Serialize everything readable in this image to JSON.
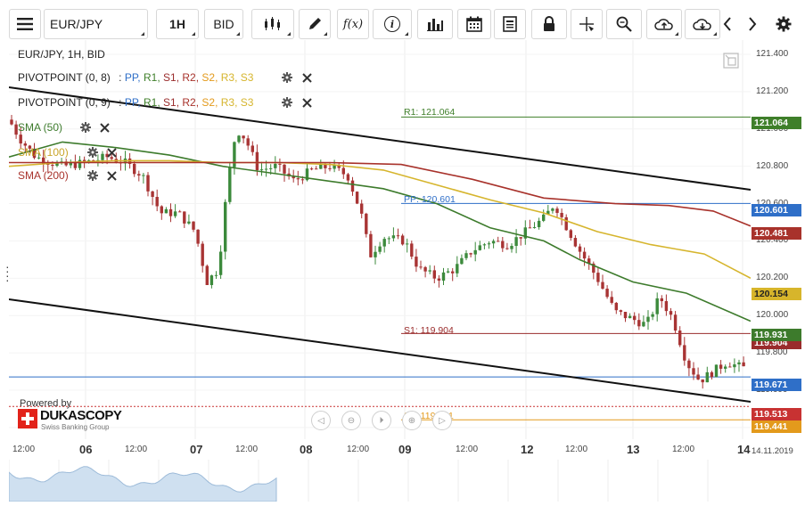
{
  "toolbar": {
    "menu_icon": "hamburger-icon",
    "instrument": "EUR/JPY",
    "period": "1H",
    "side": "BID",
    "fx_label": "f(x)",
    "info_label": "i"
  },
  "legend": {
    "title": "EUR/JPY, 1H, BID",
    "pivot1_name": "PIVOTPOINT (0, 8)",
    "pivot2_name": "PIVOTPOINT (0, 9)",
    "pivot_sep": ":",
    "pp": "PP,",
    "r1": "R1,",
    "s1": "S1,",
    "r2": "R2,",
    "s2": "S2,",
    "r3": "R3,",
    "s3": "S3",
    "sma50": "SMA (50)",
    "sma100": "SMA (100)",
    "sma200": "SMA (200)"
  },
  "levels": {
    "r1_label": "R1: 121.064",
    "pp_label": "PP: 120.601",
    "s1_label": "S1: 119.904",
    "s2_label": "S2: 119.441"
  },
  "price_axis": {
    "ticks": [
      "121.400",
      "121.200",
      "121.000",
      "120.800",
      "120.600",
      "120.400",
      "120.200",
      "120.000",
      "119.800",
      "119.600",
      "119.400"
    ],
    "tags": [
      {
        "label": "121.064",
        "color": "#3f7f2a"
      },
      {
        "label": "120.601",
        "color": "#2f6fc8"
      },
      {
        "label": "120.481",
        "color": "#a8322b"
      },
      {
        "label": "120.154",
        "color": "#d7b52b",
        "text_color": "#222"
      },
      {
        "label": "119.931",
        "color": "#3d7b2c"
      },
      {
        "label": "119.904",
        "color": "#9a2c2c"
      },
      {
        "label": "119.671",
        "color": "#2f6fc8"
      },
      {
        "label": "119.513",
        "color": "#c83232"
      },
      {
        "label": "119.441",
        "color": "#e39a1c"
      }
    ]
  },
  "time_axis": {
    "ticks": [
      "12:00",
      "06",
      "12:00",
      "07",
      "12:00",
      "08",
      "12:00",
      "09",
      "12:00",
      "12",
      "12:00",
      "13",
      "12:00",
      "14",
      "14.11.2019"
    ]
  },
  "branding": {
    "powered_by": "Powered by",
    "name": "DUKASCOPY",
    "tagline": "Swiss Banking Group"
  },
  "colors": {
    "trend": "#111111",
    "sma50": "#3d7b2c",
    "sma100": "#d6b52d",
    "sma200": "#a8322b",
    "candle_up": "#3c8a3c",
    "candle_down": "#a83434",
    "pp_color": "#2f6fc8",
    "r1_color": "#3f7f2a",
    "s1_color": "#9a2c2c",
    "s2_color": "#e39a1c"
  },
  "chart_data": {
    "type": "candlestick",
    "instrument": "EUR/JPY",
    "timeframe": "1H",
    "ylim": [
      119.35,
      121.5
    ],
    "pivot_levels": {
      "R1": 121.064,
      "PP": 120.601,
      "S1": 119.904,
      "S2": 119.441
    },
    "current_bid": 119.513,
    "sma_last": {
      "SMA50": 119.931,
      "SMA100": 120.154,
      "SMA200": 120.481
    }
  }
}
